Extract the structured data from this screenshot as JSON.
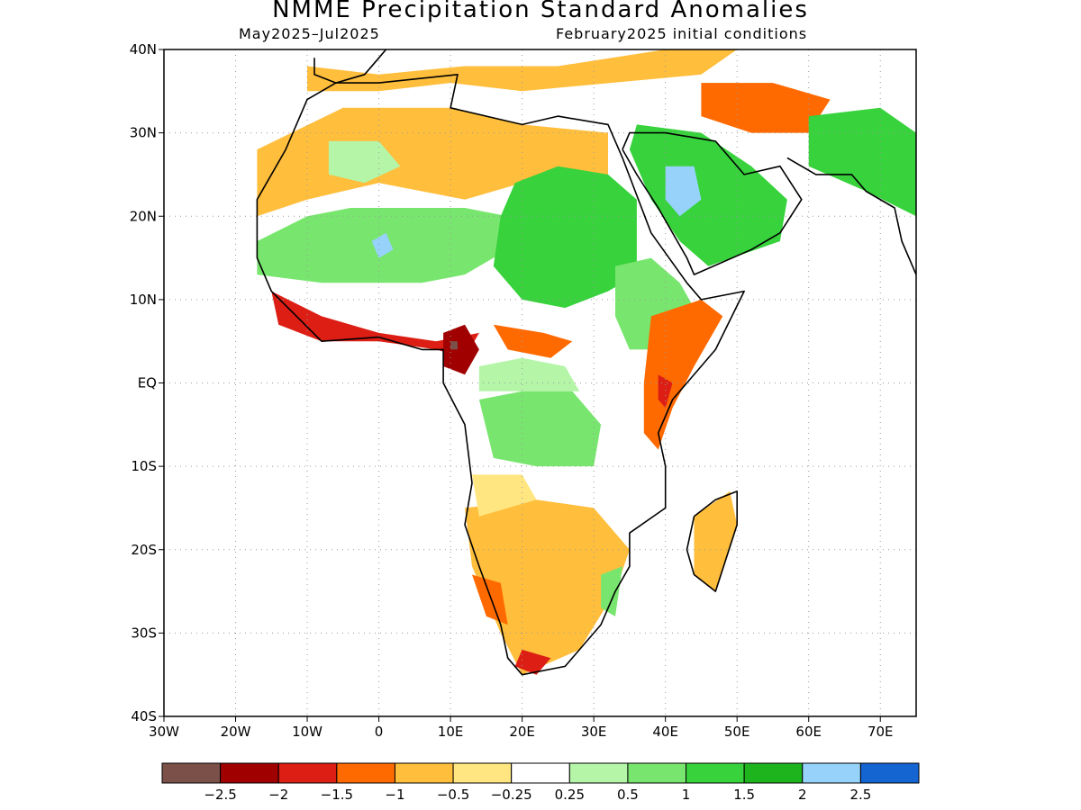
{
  "title": "NMME Precipitation Standard Anomalies",
  "subtitle_left": "May2025–Jul2025",
  "subtitle_right": "February2025 initial conditions",
  "lat_labels": [
    "40N",
    "30N",
    "20N",
    "10N",
    "EQ",
    "10S",
    "20S",
    "30S",
    "40S"
  ],
  "lon_labels": [
    "30W",
    "20W",
    "10W",
    "0",
    "10E",
    "20E",
    "30E",
    "40E",
    "50E",
    "60E",
    "70E"
  ],
  "colorbar": {
    "colors": [
      "#7a5048",
      "#a00000",
      "#dc1e14",
      "#ff6a00",
      "#ffbe3c",
      "#ffe680",
      "#ffffff",
      "#b4f5a8",
      "#78e66e",
      "#37d23c",
      "#1eb41e",
      "#96d2fa",
      "#1464d2"
    ],
    "labels": [
      "−2.5",
      "−2",
      "−1.5",
      "−1",
      "−0.5",
      "−0.25",
      "0.25",
      "0.5",
      "1",
      "1.5",
      "2",
      "2.5"
    ]
  },
  "regions": [
    {
      "name": "sahara-dry",
      "level": -0.75,
      "pts": [
        [
          -17,
          28
        ],
        [
          -5,
          33
        ],
        [
          10,
          33
        ],
        [
          20,
          31
        ],
        [
          32,
          30
        ],
        [
          32,
          24
        ],
        [
          20,
          24
        ],
        [
          12,
          22
        ],
        [
          0,
          24
        ],
        [
          -10,
          22
        ],
        [
          -17,
          20
        ]
      ]
    },
    {
      "name": "saharan-wet-patch",
      "level": 0.3,
      "pts": [
        [
          -7,
          29
        ],
        [
          0,
          29
        ],
        [
          3,
          26
        ],
        [
          -2,
          24
        ],
        [
          -7,
          25
        ]
      ]
    },
    {
      "name": "sahel-wet",
      "level": 0.75,
      "pts": [
        [
          -17,
          17
        ],
        [
          -10,
          20
        ],
        [
          -4,
          21
        ],
        [
          6,
          21
        ],
        [
          12,
          21
        ],
        [
          18,
          20
        ],
        [
          18,
          16
        ],
        [
          12,
          13
        ],
        [
          6,
          12
        ],
        [
          0,
          12
        ],
        [
          -8,
          12
        ],
        [
          -17,
          13
        ]
      ]
    },
    {
      "name": "sudan-wet",
      "level": 1.1,
      "pts": [
        [
          19,
          24
        ],
        [
          25,
          26
        ],
        [
          32,
          25
        ],
        [
          36,
          22
        ],
        [
          36,
          13
        ],
        [
          32,
          11
        ],
        [
          26,
          9
        ],
        [
          20,
          10
        ],
        [
          16,
          14
        ],
        [
          17,
          20
        ]
      ]
    },
    {
      "name": "mali-wet-core",
      "level": 2.2,
      "pts": [
        [
          -1,
          17
        ],
        [
          1,
          18
        ],
        [
          2,
          16
        ],
        [
          0,
          15
        ]
      ]
    },
    {
      "name": "guinea-coast-dry",
      "level": -1.6,
      "pts": [
        [
          -15,
          11
        ],
        [
          -8,
          8
        ],
        [
          0,
          6
        ],
        [
          8,
          5
        ],
        [
          14,
          6
        ],
        [
          12,
          3
        ],
        [
          8,
          4
        ],
        [
          0,
          5
        ],
        [
          -8,
          5
        ],
        [
          -14,
          7
        ]
      ]
    },
    {
      "name": "cameroon-dry",
      "level": -2.1,
      "pts": [
        [
          9,
          6
        ],
        [
          12,
          7
        ],
        [
          14,
          4
        ],
        [
          12,
          1
        ],
        [
          9,
          2
        ]
      ]
    },
    {
      "name": "cameroon-core",
      "level": -2.7,
      "pts": [
        [
          10,
          5
        ],
        [
          11,
          5
        ],
        [
          11,
          4
        ],
        [
          10,
          4
        ]
      ]
    },
    {
      "name": "car-dry",
      "level": -1.2,
      "pts": [
        [
          16,
          7
        ],
        [
          23,
          6
        ],
        [
          27,
          5
        ],
        [
          24,
          3
        ],
        [
          18,
          4
        ]
      ]
    },
    {
      "name": "congo-wet",
      "level": 0.8,
      "pts": [
        [
          14,
          -2
        ],
        [
          20,
          -1
        ],
        [
          27,
          -1
        ],
        [
          31,
          -5
        ],
        [
          30,
          -10
        ],
        [
          22,
          -10
        ],
        [
          16,
          -9
        ]
      ]
    },
    {
      "name": "central-mixed",
      "level": 0.3,
      "pts": [
        [
          14,
          2
        ],
        [
          20,
          3
        ],
        [
          26,
          2
        ],
        [
          28,
          -1
        ],
        [
          20,
          -1
        ],
        [
          14,
          -1
        ]
      ]
    },
    {
      "name": "ethiopia-wet",
      "level": 0.9,
      "pts": [
        [
          33,
          14
        ],
        [
          38,
          15
        ],
        [
          42,
          12
        ],
        [
          44,
          9
        ],
        [
          40,
          4
        ],
        [
          35,
          4
        ],
        [
          33,
          8
        ]
      ]
    },
    {
      "name": "east-africa-dry",
      "level": -1.3,
      "pts": [
        [
          38,
          8
        ],
        [
          45,
          10
        ],
        [
          48,
          8
        ],
        [
          44,
          2
        ],
        [
          41,
          -3
        ],
        [
          39,
          -8
        ],
        [
          37,
          -6
        ],
        [
          37,
          0
        ]
      ]
    },
    {
      "name": "kenya-core",
      "level": -2.0,
      "pts": [
        [
          39,
          1
        ],
        [
          41,
          0
        ],
        [
          40,
          -3
        ],
        [
          39,
          -2
        ]
      ]
    },
    {
      "name": "arabia-wet",
      "level": 1.3,
      "pts": [
        [
          36,
          31
        ],
        [
          45,
          30
        ],
        [
          52,
          26
        ],
        [
          57,
          22
        ],
        [
          56,
          17
        ],
        [
          46,
          14
        ],
        [
          42,
          17
        ],
        [
          38,
          22
        ],
        [
          35,
          28
        ]
      ]
    },
    {
      "name": "arabia-core",
      "level": 2.3,
      "pts": [
        [
          40,
          26
        ],
        [
          44,
          26
        ],
        [
          45,
          22
        ],
        [
          42,
          20
        ],
        [
          40,
          22
        ]
      ]
    },
    {
      "name": "iran-dry",
      "level": -1.2,
      "pts": [
        [
          45,
          36
        ],
        [
          55,
          36
        ],
        [
          63,
          34
        ],
        [
          60,
          30
        ],
        [
          52,
          30
        ],
        [
          45,
          32
        ]
      ]
    },
    {
      "name": "central-asia-wet",
      "level": 1.0,
      "pts": [
        [
          60,
          32
        ],
        [
          70,
          33
        ],
        [
          75,
          30
        ],
        [
          75,
          20
        ],
        [
          68,
          23
        ],
        [
          60,
          26
        ]
      ]
    },
    {
      "name": "mediterranean-dry",
      "level": -0.9,
      "pts": [
        [
          -10,
          38
        ],
        [
          0,
          37
        ],
        [
          12,
          38
        ],
        [
          25,
          38
        ],
        [
          40,
          40
        ],
        [
          50,
          40
        ],
        [
          45,
          37
        ],
        [
          20,
          35
        ],
        [
          10,
          36
        ],
        [
          0,
          35
        ],
        [
          -10,
          35
        ]
      ]
    },
    {
      "name": "southern-africa-dry",
      "level": -0.8,
      "pts": [
        [
          12,
          -15
        ],
        [
          22,
          -14
        ],
        [
          30,
          -15
        ],
        [
          35,
          -20
        ],
        [
          33,
          -25
        ],
        [
          28,
          -32
        ],
        [
          20,
          -35
        ],
        [
          17,
          -30
        ],
        [
          13,
          -22
        ]
      ]
    },
    {
      "name": "namibia-dry",
      "level": -1.4,
      "pts": [
        [
          13,
          -23
        ],
        [
          17,
          -24
        ],
        [
          18,
          -29
        ],
        [
          15,
          -28
        ]
      ]
    },
    {
      "name": "cape-dry",
      "level": -1.7,
      "pts": [
        [
          20,
          -32
        ],
        [
          24,
          -33
        ],
        [
          22,
          -35
        ],
        [
          19,
          -34
        ]
      ]
    },
    {
      "name": "mozambique-wet",
      "level": 0.6,
      "pts": [
        [
          31,
          -23
        ],
        [
          34,
          -22
        ],
        [
          33,
          -28
        ],
        [
          31,
          -27
        ]
      ]
    },
    {
      "name": "madagascar-dry",
      "level": -0.9,
      "pts": [
        [
          44,
          -16
        ],
        [
          49,
          -13
        ],
        [
          50,
          -17
        ],
        [
          47,
          -25
        ],
        [
          44,
          -23
        ]
      ]
    },
    {
      "name": "angola-mixed",
      "level": -0.5,
      "pts": [
        [
          13,
          -11
        ],
        [
          20,
          -11
        ],
        [
          22,
          -14
        ],
        [
          14,
          -16
        ]
      ]
    }
  ],
  "outlines": [
    {
      "name": "africa-coast",
      "pts": [
        [
          -6,
          36
        ],
        [
          -10,
          34
        ],
        [
          -13,
          28
        ],
        [
          -17,
          22
        ],
        [
          -17,
          15
        ],
        [
          -15,
          11
        ],
        [
          -8,
          5
        ],
        [
          0,
          5.5
        ],
        [
          6,
          4
        ],
        [
          9,
          4
        ],
        [
          9,
          0
        ],
        [
          12,
          -5
        ],
        [
          13,
          -12
        ],
        [
          12,
          -17
        ],
        [
          14,
          -22
        ],
        [
          17,
          -29
        ],
        [
          18,
          -33
        ],
        [
          20,
          -35
        ],
        [
          26,
          -34
        ],
        [
          31,
          -29
        ],
        [
          33,
          -25
        ],
        [
          35,
          -22
        ],
        [
          35,
          -18
        ],
        [
          40,
          -15
        ],
        [
          40,
          -10
        ],
        [
          39,
          -6
        ],
        [
          41,
          -2
        ],
        [
          47,
          4
        ],
        [
          51,
          11
        ],
        [
          45,
          10
        ],
        [
          43,
          12
        ],
        [
          38,
          18
        ],
        [
          34,
          27
        ],
        [
          32,
          31
        ],
        [
          25,
          32
        ],
        [
          20,
          31
        ],
        [
          15,
          32
        ],
        [
          10,
          33
        ],
        [
          11,
          37
        ],
        [
          0,
          36
        ],
        [
          -6,
          36
        ]
      ]
    },
    {
      "name": "madagascar-coast",
      "pts": [
        [
          44,
          -16
        ],
        [
          47,
          -14
        ],
        [
          50,
          -13
        ],
        [
          50,
          -17
        ],
        [
          47,
          -25
        ],
        [
          44,
          -23
        ],
        [
          43,
          -20
        ],
        [
          44,
          -16
        ]
      ]
    },
    {
      "name": "arabia-coast",
      "pts": [
        [
          34,
          28
        ],
        [
          35,
          30
        ],
        [
          40,
          30
        ],
        [
          47,
          29
        ],
        [
          51,
          25
        ],
        [
          56,
          26
        ],
        [
          59,
          22
        ],
        [
          56,
          18
        ],
        [
          52,
          16
        ],
        [
          44,
          13
        ],
        [
          43,
          15
        ],
        [
          39,
          21
        ],
        [
          36,
          25
        ],
        [
          34,
          28
        ]
      ]
    },
    {
      "name": "iberia-coast",
      "pts": [
        [
          -9,
          39
        ],
        [
          -9,
          37
        ],
        [
          -6,
          36
        ],
        [
          -2,
          37
        ],
        [
          0,
          39
        ],
        [
          1,
          40
        ]
      ]
    },
    {
      "name": "asia-coast",
      "pts": [
        [
          57,
          27
        ],
        [
          61,
          25
        ],
        [
          66,
          25
        ],
        [
          68,
          23
        ],
        [
          72,
          21
        ],
        [
          73,
          17
        ],
        [
          75,
          13
        ]
      ]
    }
  ]
}
